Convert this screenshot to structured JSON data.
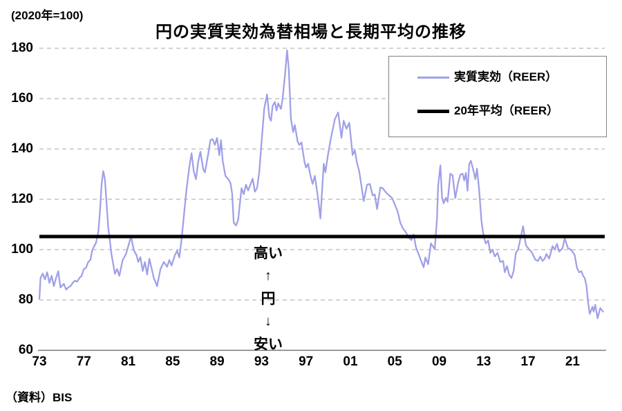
{
  "unit_label": "(2020年=100)",
  "title": "円の実質実効為替相場と長期平均の推移",
  "source": "（資料）BIS",
  "legend": {
    "items": [
      {
        "label": "実質実効（REER）",
        "swatch": "thin-lavender-line"
      },
      {
        "label": "20年平均（REER）",
        "swatch": "thick-black-line"
      }
    ]
  },
  "annotation": {
    "high": "高い",
    "up": "↑",
    "yen": "円",
    "down": "↓",
    "low": "安い"
  },
  "colors": {
    "reer_line": "#a0a0e8",
    "average_line": "#000000",
    "grid": "#c3c3c3",
    "axis": "#8c8c8c",
    "text": "#000000",
    "background": "#ffffff"
  },
  "chart_data": {
    "type": "line",
    "title": "円の実質実効為替相場と長期平均の推移",
    "ylabel": "(2020年=100)",
    "xlabel": "",
    "grid": "horizontal dashed",
    "legend_position": "top-right",
    "x_axis": {
      "range": [
        1973,
        2024
      ],
      "tick_years": [
        1973,
        1977,
        1981,
        1985,
        1989,
        1993,
        1997,
        2001,
        2005,
        2009,
        2013,
        2017,
        2021
      ],
      "tick_labels": [
        "73",
        "77",
        "81",
        "85",
        "89",
        "93",
        "97",
        "01",
        "05",
        "09",
        "13",
        "17",
        "21"
      ]
    },
    "y_axis": {
      "range": [
        60,
        180
      ],
      "ticks": [
        60,
        80,
        100,
        120,
        140,
        160,
        180
      ]
    },
    "series": [
      {
        "name": "実質実効（REER）",
        "type": "line",
        "color": "#a0a0e8",
        "points": [
          [
            1973.0,
            80.5
          ],
          [
            1973.1,
            88.7
          ],
          [
            1973.3,
            90.5
          ],
          [
            1973.5,
            88.2
          ],
          [
            1973.7,
            91.0
          ],
          [
            1973.9,
            86.8
          ],
          [
            1974.1,
            89.6
          ],
          [
            1974.3,
            85.5
          ],
          [
            1974.5,
            88.7
          ],
          [
            1974.7,
            91.4
          ],
          [
            1974.9,
            85.0
          ],
          [
            1975.2,
            86.4
          ],
          [
            1975.4,
            84.1
          ],
          [
            1975.6,
            85.0
          ],
          [
            1975.8,
            85.5
          ],
          [
            1976.0,
            86.8
          ],
          [
            1976.2,
            87.7
          ],
          [
            1976.4,
            87.3
          ],
          [
            1976.6,
            88.7
          ],
          [
            1976.8,
            89.6
          ],
          [
            1977.0,
            92.3
          ],
          [
            1977.2,
            92.8
          ],
          [
            1977.4,
            95.1
          ],
          [
            1977.6,
            96.0
          ],
          [
            1977.75,
            99.6
          ],
          [
            1977.9,
            101.0
          ],
          [
            1978.1,
            102.8
          ],
          [
            1978.3,
            107.0
          ],
          [
            1978.45,
            115.0
          ],
          [
            1978.6,
            126.0
          ],
          [
            1978.75,
            131.2
          ],
          [
            1978.9,
            128.0
          ],
          [
            1979.2,
            108.8
          ],
          [
            1979.5,
            97.8
          ],
          [
            1979.8,
            90.4
          ],
          [
            1980.0,
            92.3
          ],
          [
            1980.2,
            89.6
          ],
          [
            1980.5,
            95.9
          ],
          [
            1980.8,
            98.3
          ],
          [
            1981.0,
            101.4
          ],
          [
            1981.25,
            105.2
          ],
          [
            1981.5,
            99.7
          ],
          [
            1981.75,
            97.8
          ],
          [
            1981.9,
            95.1
          ],
          [
            1982.1,
            97.0
          ],
          [
            1982.3,
            91.5
          ],
          [
            1982.5,
            95.1
          ],
          [
            1982.7,
            90.1
          ],
          [
            1982.9,
            96.4
          ],
          [
            1983.3,
            88.8
          ],
          [
            1983.6,
            85.5
          ],
          [
            1983.9,
            92.3
          ],
          [
            1984.2,
            95.1
          ],
          [
            1984.5,
            93.2
          ],
          [
            1984.7,
            95.9
          ],
          [
            1984.9,
            93.7
          ],
          [
            1985.2,
            97.8
          ],
          [
            1985.4,
            99.6
          ],
          [
            1985.6,
            96.9
          ],
          [
            1985.8,
            104.0
          ],
          [
            1986.0,
            113.0
          ],
          [
            1986.25,
            124.0
          ],
          [
            1986.5,
            133.0
          ],
          [
            1986.7,
            138.3
          ],
          [
            1986.9,
            131.0
          ],
          [
            1987.1,
            128.0
          ],
          [
            1987.3,
            135.0
          ],
          [
            1987.5,
            138.9
          ],
          [
            1987.75,
            132.0
          ],
          [
            1987.9,
            130.7
          ],
          [
            1988.2,
            138.0
          ],
          [
            1988.4,
            143.5
          ],
          [
            1988.6,
            143.9
          ],
          [
            1988.8,
            141.6
          ],
          [
            1989.0,
            144.4
          ],
          [
            1989.2,
            137.5
          ],
          [
            1989.35,
            143.5
          ],
          [
            1989.5,
            135.3
          ],
          [
            1989.75,
            129.3
          ],
          [
            1990.0,
            128.0
          ],
          [
            1990.2,
            126.6
          ],
          [
            1990.35,
            122.5
          ],
          [
            1990.5,
            110.7
          ],
          [
            1990.7,
            109.6
          ],
          [
            1990.9,
            112.0
          ],
          [
            1991.2,
            124.4
          ],
          [
            1991.4,
            122.0
          ],
          [
            1991.6,
            125.8
          ],
          [
            1991.8,
            123.5
          ],
          [
            1992.2,
            128.2
          ],
          [
            1992.4,
            123.0
          ],
          [
            1992.6,
            124.5
          ],
          [
            1992.8,
            131.0
          ],
          [
            1993.0,
            142.5
          ],
          [
            1993.25,
            156.2
          ],
          [
            1993.5,
            161.7
          ],
          [
            1993.7,
            152.6
          ],
          [
            1993.85,
            151.2
          ],
          [
            1994.0,
            157.2
          ],
          [
            1994.2,
            158.6
          ],
          [
            1994.35,
            155.3
          ],
          [
            1994.5,
            158.1
          ],
          [
            1994.75,
            155.9
          ],
          [
            1994.9,
            160.0
          ],
          [
            1995.1,
            169.0
          ],
          [
            1995.3,
            179.2
          ],
          [
            1995.45,
            171.8
          ],
          [
            1995.65,
            151.8
          ],
          [
            1995.85,
            146.7
          ],
          [
            1996.0,
            149.5
          ],
          [
            1996.25,
            143.0
          ],
          [
            1996.4,
            141.6
          ],
          [
            1996.6,
            142.6
          ],
          [
            1996.85,
            135.3
          ],
          [
            1997.0,
            132.6
          ],
          [
            1997.2,
            134.1
          ],
          [
            1997.4,
            129.5
          ],
          [
            1997.6,
            126.1
          ],
          [
            1997.8,
            129.3
          ],
          [
            1998.1,
            120.0
          ],
          [
            1998.3,
            112.4
          ],
          [
            1998.6,
            134.1
          ],
          [
            1998.75,
            130.7
          ],
          [
            1999.0,
            138.1
          ],
          [
            1999.25,
            144.4
          ],
          [
            1999.6,
            151.8
          ],
          [
            1999.9,
            154.5
          ],
          [
            2000.2,
            144.4
          ],
          [
            2000.4,
            151.2
          ],
          [
            2000.65,
            148.0
          ],
          [
            2000.9,
            150.4
          ],
          [
            2001.2,
            137.6
          ],
          [
            2001.4,
            139.5
          ],
          [
            2001.6,
            134.4
          ],
          [
            2001.8,
            131.1
          ],
          [
            2002.2,
            119.3
          ],
          [
            2002.5,
            125.8
          ],
          [
            2002.75,
            126.1
          ],
          [
            2003.0,
            121.6
          ],
          [
            2003.2,
            121.9
          ],
          [
            2003.4,
            116.1
          ],
          [
            2003.7,
            124.7
          ],
          [
            2003.9,
            124.4
          ],
          [
            2004.25,
            122.5
          ],
          [
            2004.6,
            121.1
          ],
          [
            2004.75,
            120.6
          ],
          [
            2005.0,
            117.9
          ],
          [
            2005.25,
            115.2
          ],
          [
            2005.5,
            110.6
          ],
          [
            2005.75,
            108.3
          ],
          [
            2006.0,
            106.9
          ],
          [
            2006.25,
            104.7
          ],
          [
            2006.5,
            103.8
          ],
          [
            2006.7,
            106.0
          ],
          [
            2006.9,
            101.0
          ],
          [
            2007.1,
            98.7
          ],
          [
            2007.3,
            96.4
          ],
          [
            2007.6,
            93.0
          ],
          [
            2007.75,
            96.9
          ],
          [
            2008.0,
            94.2
          ],
          [
            2008.25,
            102.5
          ],
          [
            2008.6,
            100.2
          ],
          [
            2008.8,
            112.4
          ],
          [
            2008.9,
            125.2
          ],
          [
            2009.1,
            133.5
          ],
          [
            2009.25,
            120.6
          ],
          [
            2009.4,
            118.4
          ],
          [
            2009.6,
            120.6
          ],
          [
            2009.75,
            119.0
          ],
          [
            2010.0,
            130.2
          ],
          [
            2010.2,
            129.5
          ],
          [
            2010.45,
            120.5
          ],
          [
            2010.7,
            126.6
          ],
          [
            2010.9,
            129.8
          ],
          [
            2011.1,
            130.2
          ],
          [
            2011.25,
            127.5
          ],
          [
            2011.4,
            130.5
          ],
          [
            2011.55,
            123.4
          ],
          [
            2011.7,
            133.9
          ],
          [
            2011.85,
            135.3
          ],
          [
            2012.1,
            131.0
          ],
          [
            2012.25,
            128.0
          ],
          [
            2012.4,
            132.1
          ],
          [
            2012.6,
            123.4
          ],
          [
            2012.8,
            111.5
          ],
          [
            2013.0,
            105.2
          ],
          [
            2013.2,
            102.4
          ],
          [
            2013.4,
            103.7
          ],
          [
            2013.6,
            98.7
          ],
          [
            2013.8,
            100.0
          ],
          [
            2014.0,
            97.3
          ],
          [
            2014.25,
            98.7
          ],
          [
            2014.5,
            95.1
          ],
          [
            2014.75,
            95.5
          ],
          [
            2014.9,
            91.0
          ],
          [
            2015.1,
            93.5
          ],
          [
            2015.3,
            90.0
          ],
          [
            2015.5,
            88.7
          ],
          [
            2015.7,
            91.5
          ],
          [
            2015.9,
            98.7
          ],
          [
            2016.1,
            100.0
          ],
          [
            2016.3,
            104.2
          ],
          [
            2016.55,
            109.3
          ],
          [
            2016.8,
            101.8
          ],
          [
            2017.1,
            100.0
          ],
          [
            2017.3,
            99.2
          ],
          [
            2017.65,
            96.0
          ],
          [
            2017.9,
            95.5
          ],
          [
            2018.1,
            97.3
          ],
          [
            2018.3,
            95.5
          ],
          [
            2018.5,
            96.4
          ],
          [
            2018.65,
            98.3
          ],
          [
            2018.9,
            96.4
          ],
          [
            2019.2,
            101.4
          ],
          [
            2019.4,
            100.0
          ],
          [
            2019.6,
            102.3
          ],
          [
            2019.8,
            99.2
          ],
          [
            2020.1,
            100.5
          ],
          [
            2020.3,
            104.5
          ],
          [
            2020.6,
            100.5
          ],
          [
            2020.8,
            100.1
          ],
          [
            2021.0,
            99.2
          ],
          [
            2021.2,
            97.8
          ],
          [
            2021.4,
            92.8
          ],
          [
            2021.6,
            91.0
          ],
          [
            2021.8,
            91.4
          ],
          [
            2021.95,
            89.6
          ],
          [
            2022.1,
            88.7
          ],
          [
            2022.25,
            85.9
          ],
          [
            2022.4,
            79.0
          ],
          [
            2022.55,
            74.5
          ],
          [
            2022.8,
            77.3
          ],
          [
            2022.9,
            75.4
          ],
          [
            2023.05,
            78.1
          ],
          [
            2023.25,
            72.7
          ],
          [
            2023.5,
            76.8
          ],
          [
            2023.75,
            75.4
          ]
        ]
      },
      {
        "name": "20年平均（REER）",
        "type": "horizontal-line",
        "color": "#000000",
        "value": 105.2,
        "x_span": [
          1973.0,
          2023.9
        ]
      }
    ]
  }
}
